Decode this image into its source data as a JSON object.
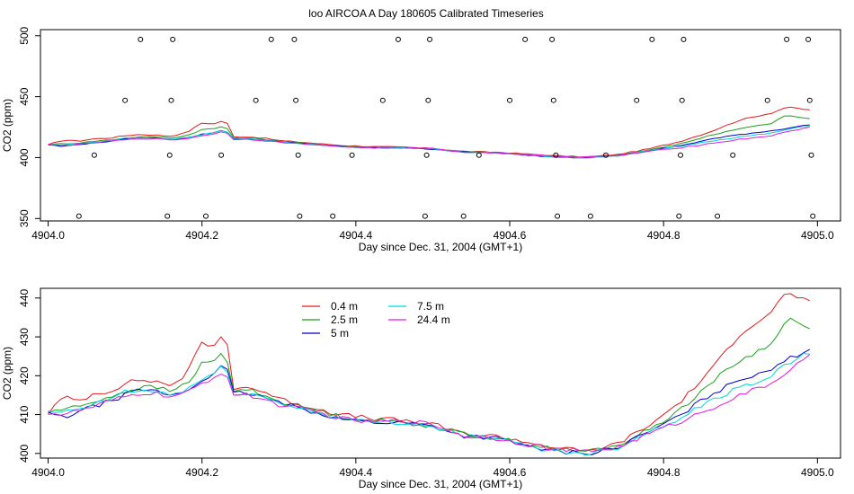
{
  "title": "loo AIRCOA A  Day 180605  Calibrated Timeseries",
  "series_colors": {
    "0.4 m": "#e41a1c",
    "2.5 m": "#1aa11a",
    "5 m": "#0000cc",
    "7.5 m": "#00d7d7",
    "24.4 m": "#e21ce2"
  },
  "chart_data": [
    {
      "type": "line",
      "xlabel": "Day since Dec. 31, 2004 (GMT+1)",
      "ylabel": "CO2 (ppm)",
      "xlim": [
        4903.99,
        4905.03
      ],
      "ylim": [
        348,
        505
      ],
      "xticks": [
        4904.0,
        4904.2,
        4904.4,
        4904.6,
        4904.8,
        4905.0
      ],
      "xtick_labels": [
        "4904.0",
        "4904.2",
        "4904.4",
        "4904.6",
        "4904.8",
        "4905.0"
      ],
      "yticks": [
        350,
        400,
        450,
        500
      ],
      "ytick_labels": [
        "350",
        "400",
        "450",
        "500"
      ],
      "legend": "none",
      "scatter_points": [
        [
          4904.04,
          352
        ],
        [
          4904.06,
          402
        ],
        [
          4904.1,
          447
        ],
        [
          4904.12,
          497
        ],
        [
          4904.155,
          352
        ],
        [
          4904.158,
          402
        ],
        [
          4904.16,
          447
        ],
        [
          4904.162,
          497
        ],
        [
          4904.205,
          352
        ],
        [
          4904.225,
          402
        ],
        [
          4904.27,
          447
        ],
        [
          4904.29,
          497
        ],
        [
          4904.32,
          497
        ],
        [
          4904.322,
          447
        ],
        [
          4904.325,
          402
        ],
        [
          4904.327,
          352
        ],
        [
          4904.37,
          352
        ],
        [
          4904.395,
          402
        ],
        [
          4904.435,
          447
        ],
        [
          4904.455,
          497
        ],
        [
          4904.49,
          352
        ],
        [
          4904.492,
          402
        ],
        [
          4904.494,
          447
        ],
        [
          4904.496,
          497
        ],
        [
          4904.54,
          352
        ],
        [
          4904.56,
          402
        ],
        [
          4904.6,
          447
        ],
        [
          4904.62,
          497
        ],
        [
          4904.655,
          497
        ],
        [
          4904.657,
          447
        ],
        [
          4904.66,
          402
        ],
        [
          4904.662,
          352
        ],
        [
          4904.705,
          352
        ],
        [
          4904.725,
          402
        ],
        [
          4904.765,
          447
        ],
        [
          4904.785,
          497
        ],
        [
          4904.82,
          352
        ],
        [
          4904.822,
          402
        ],
        [
          4904.824,
          447
        ],
        [
          4904.826,
          497
        ],
        [
          4904.87,
          352
        ],
        [
          4904.89,
          402
        ],
        [
          4904.935,
          447
        ],
        [
          4904.96,
          497
        ],
        [
          4904.988,
          497
        ],
        [
          4904.99,
          447
        ],
        [
          4904.992,
          402
        ],
        [
          4904.994,
          352
        ]
      ]
    },
    {
      "type": "line",
      "xlabel": "Day since Dec. 31, 2004 (GMT+1)",
      "ylabel": "CO2 (ppm)",
      "xlim": [
        4903.99,
        4905.03
      ],
      "ylim": [
        398.8,
        442.5
      ],
      "xticks": [
        4904.0,
        4904.2,
        4904.4,
        4904.6,
        4904.8,
        4905.0
      ],
      "xtick_labels": [
        "4904.0",
        "4904.2",
        "4904.4",
        "4904.6",
        "4904.8",
        "4905.0"
      ],
      "yticks": [
        400,
        410,
        420,
        430,
        440
      ],
      "ytick_labels": [
        "400",
        "410",
        "420",
        "430",
        "440"
      ],
      "legend": "top-left",
      "legend_entries": [
        "0.4 m",
        "2.5 m",
        "5 m",
        "7.5 m",
        "24.4 m"
      ]
    }
  ],
  "series_anchors": {
    "x": [
      4904.0,
      4904.02,
      4904.04,
      4904.06,
      4904.08,
      4904.1,
      4904.12,
      4904.14,
      4904.16,
      4904.18,
      4904.2,
      4904.22,
      4904.23,
      4904.24,
      4904.26,
      4904.28,
      4904.3,
      4904.34,
      4904.38,
      4904.42,
      4904.46,
      4904.5,
      4904.54,
      4904.58,
      4904.62,
      4904.66,
      4904.7,
      4904.74,
      4904.78,
      4904.82,
      4904.86,
      4904.9,
      4904.94,
      4904.96,
      4904.99
    ],
    "series": [
      {
        "name": "0.4 m",
        "values": [
          410.5,
          414.5,
          413.5,
          415.5,
          416,
          418,
          419,
          418.5,
          417.5,
          420.5,
          428.5,
          427.5,
          432.5,
          417,
          417,
          416,
          414,
          412,
          410,
          409,
          408.5,
          407.5,
          405,
          404.5,
          403,
          401.5,
          400.5,
          402.5,
          407,
          413,
          421,
          431,
          436.5,
          441.5,
          439
        ]
      },
      {
        "name": "2.5 m",
        "values": [
          410.5,
          411.5,
          412,
          413.5,
          414.5,
          416,
          417,
          417,
          416,
          418,
          423,
          424,
          427,
          416,
          416.5,
          415,
          413.5,
          411.5,
          409.5,
          408.5,
          408,
          407,
          405,
          404,
          402.5,
          401,
          400.5,
          402,
          406,
          411,
          418,
          424,
          428,
          435,
          432
        ]
      },
      {
        "name": "5 m",
        "values": [
          410.5,
          409,
          411,
          412,
          413.5,
          415,
          416.5,
          416,
          415,
          416,
          419,
          421,
          423.5,
          415.5,
          415.5,
          414.5,
          413,
          411,
          409,
          408,
          408,
          407,
          404.5,
          404,
          402,
          400.5,
          400,
          401.5,
          405.5,
          409.5,
          415,
          419,
          422,
          424,
          427
        ]
      },
      {
        "name": "7.5 m",
        "values": [
          410.5,
          410.5,
          411.5,
          412.5,
          414,
          416,
          416,
          416,
          415,
          416.5,
          419,
          421,
          423,
          415.5,
          415.5,
          414.5,
          413,
          411,
          409,
          408,
          408,
          407,
          404.5,
          404,
          402,
          400.5,
          400,
          401.5,
          405.5,
          409,
          413.5,
          417,
          420,
          423,
          426
        ]
      },
      {
        "name": "24.4 m",
        "values": [
          410.5,
          410,
          411,
          412,
          413.5,
          414.5,
          415.5,
          415.5,
          414.5,
          415.5,
          418,
          420,
          422,
          415,
          415,
          414,
          412.5,
          411,
          409,
          408,
          408.5,
          407.5,
          404.5,
          404,
          402.5,
          401,
          400.5,
          401.5,
          405,
          408,
          411.5,
          415,
          418,
          421,
          425
        ]
      }
    ]
  }
}
